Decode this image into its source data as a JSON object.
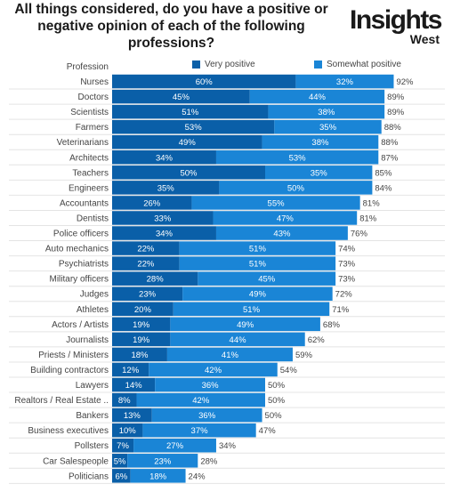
{
  "title": "All things considered, do you have a positive or negative opinion of each of the following professions?",
  "logo": {
    "main": "Insights",
    "sub": "West"
  },
  "colors": {
    "very_positive": "#0a5fa8",
    "somewhat_positive": "#1a85d6",
    "label": "#ffffff"
  },
  "chart_data": {
    "type": "bar",
    "orientation": "horizontal",
    "stacked": true,
    "xlabel": "",
    "ylabel": "Profession",
    "legend": "top",
    "categories": [
      "Nurses",
      "Doctors",
      "Scientists",
      "Farmers",
      "Veterinarians",
      "Architects",
      "Teachers",
      "Engineers",
      "Accountants",
      "Dentists",
      "Police officers",
      "Auto mechanics",
      "Psychiatrists",
      "Military officers",
      "Judges",
      "Athletes",
      "Actors / Artists",
      "Journalists",
      "Priests / Ministers",
      "Building contractors",
      "Lawyers",
      "Realtors / Real Estate ..",
      "Bankers",
      "Business executives",
      "Pollsters",
      "Car Salespeople",
      "Politicians"
    ],
    "series": [
      {
        "name": "Very positive",
        "values": [
          60,
          45,
          51,
          53,
          49,
          34,
          50,
          35,
          26,
          33,
          34,
          22,
          22,
          28,
          23,
          20,
          19,
          19,
          18,
          12,
          14,
          8,
          13,
          10,
          7,
          5,
          6
        ]
      },
      {
        "name": "Somewhat positive",
        "values": [
          32,
          44,
          38,
          35,
          38,
          53,
          35,
          50,
          55,
          47,
          43,
          51,
          51,
          45,
          49,
          51,
          49,
          44,
          41,
          42,
          36,
          42,
          36,
          37,
          27,
          23,
          18
        ]
      }
    ],
    "totals": [
      92,
      89,
      89,
      88,
      88,
      87,
      85,
      84,
      81,
      81,
      76,
      74,
      73,
      73,
      72,
      71,
      68,
      62,
      59,
      54,
      50,
      50,
      50,
      47,
      34,
      28,
      24
    ],
    "value_suffix": "%",
    "xlim": [
      0,
      100
    ]
  }
}
